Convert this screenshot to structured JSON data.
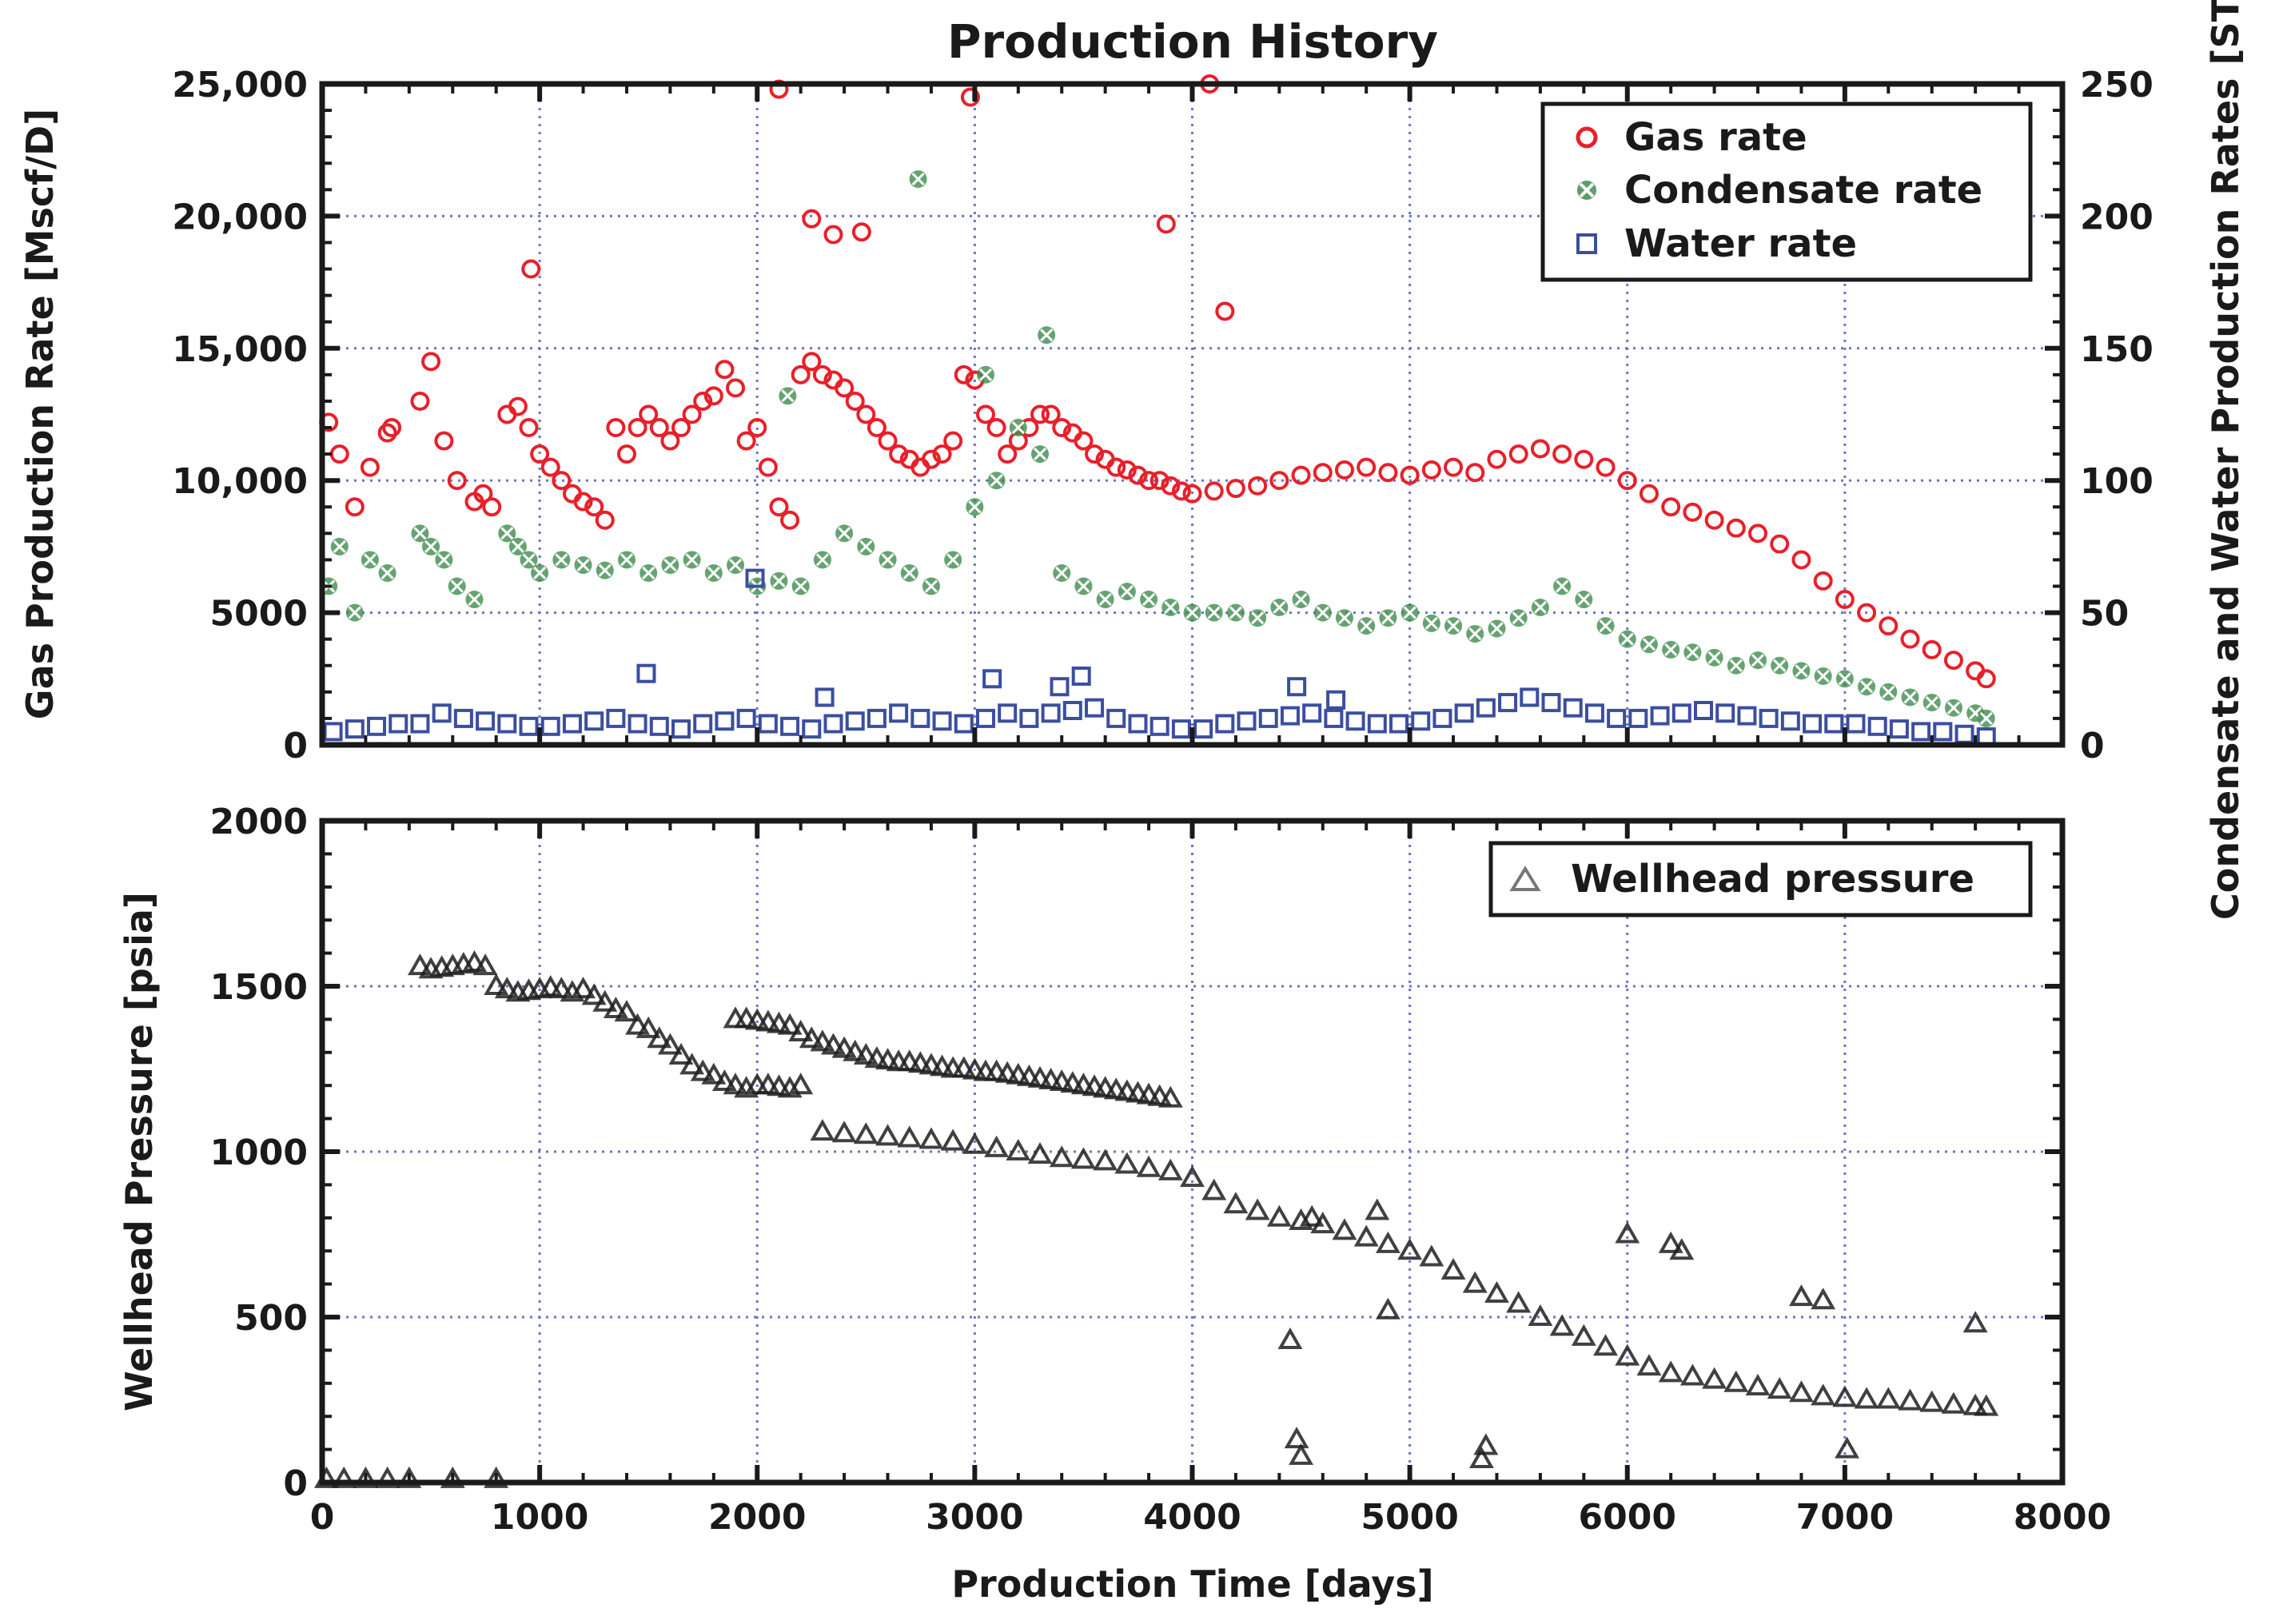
{
  "chart_data": [
    {
      "type": "scatter",
      "title": "Production History",
      "xlabel": "",
      "ylabel_left": "Gas Production Rate [Mscf/D]",
      "ylabel_right": "Condensate and Water Production Rates [STB/D]",
      "xlim": [
        0,
        8000
      ],
      "ylim_left": [
        0,
        25000
      ],
      "ylim_right": [
        0,
        250
      ],
      "x_ticks": [
        0,
        1000,
        2000,
        3000,
        4000,
        5000,
        6000,
        7000,
        8000
      ],
      "y_ticks_left": [
        0,
        5000,
        10000,
        15000,
        20000,
        25000
      ],
      "y_tick_labels_left": [
        "0",
        "5000",
        "10,000",
        "15,000",
        "20,000",
        "25,000"
      ],
      "y_ticks_right": [
        0,
        50,
        100,
        150,
        200,
        250
      ],
      "y_tick_labels_right": [
        "0",
        "50",
        "100",
        "150",
        "200",
        "250"
      ],
      "grid": true,
      "legend_position": "top-right",
      "series": [
        {
          "name": "Gas rate",
          "axis": "left",
          "marker": "circle",
          "color": "#e8202a",
          "x": [
            30,
            80,
            150,
            220,
            300,
            320,
            450,
            500,
            560,
            620,
            700,
            740,
            780,
            850,
            900,
            950,
            1000,
            1050,
            1100,
            1150,
            1200,
            1250,
            1300,
            1350,
            1400,
            1450,
            1500,
            1550,
            1600,
            1650,
            1700,
            1750,
            1800,
            1850,
            1900,
            1950,
            2000,
            2050,
            2100,
            2150,
            2200,
            2250,
            2300,
            2350,
            2400,
            2450,
            2500,
            2550,
            2600,
            2650,
            2700,
            2750,
            2800,
            2850,
            2900,
            2950,
            3000,
            3050,
            3100,
            3150,
            3200,
            3250,
            3300,
            3350,
            3400,
            3450,
            3500,
            3550,
            3600,
            3650,
            3700,
            3750,
            3800,
            3850,
            3900,
            3950,
            4000,
            4100,
            4200,
            4300,
            4400,
            4500,
            4600,
            4700,
            4800,
            4900,
            5000,
            5100,
            5200,
            5300,
            5400,
            5500,
            5600,
            5700,
            5800,
            5900,
            6000,
            6100,
            6200,
            6300,
            6400,
            6500,
            6600,
            6700,
            6800,
            6900,
            7000,
            7100,
            7200,
            7300,
            7400,
            7500,
            7600,
            7650,
            960,
            2100,
            2250,
            2350,
            2480,
            2980,
            4080,
            3880,
            4150
          ],
          "y": [
            12200,
            11000,
            9000,
            10500,
            11800,
            12000,
            13000,
            14500,
            11500,
            10000,
            9200,
            9500,
            9000,
            12500,
            12800,
            12000,
            11000,
            10500,
            10000,
            9500,
            9200,
            9000,
            8500,
            12000,
            11000,
            12000,
            12500,
            12000,
            11500,
            12000,
            12500,
            13000,
            13200,
            14200,
            13500,
            11500,
            12000,
            10500,
            9000,
            8500,
            14000,
            14500,
            14000,
            13800,
            13500,
            13000,
            12500,
            12000,
            11500,
            11000,
            10800,
            10500,
            10800,
            11000,
            11500,
            14000,
            13800,
            12500,
            12000,
            11000,
            11500,
            12000,
            12500,
            12500,
            12000,
            11800,
            11500,
            11000,
            10800,
            10500,
            10400,
            10200,
            10000,
            10000,
            9800,
            9600,
            9500,
            9600,
            9700,
            9800,
            10000,
            10200,
            10300,
            10400,
            10500,
            10300,
            10200,
            10400,
            10500,
            10300,
            10800,
            11000,
            11200,
            11000,
            10800,
            10500,
            10000,
            9500,
            9000,
            8800,
            8500,
            8200,
            8000,
            7600,
            7000,
            6200,
            5500,
            5000,
            4500,
            4000,
            3600,
            3200,
            2800,
            2500,
            18000,
            24800,
            19900,
            19300,
            19400,
            24500,
            25000,
            19700,
            16400
          ]
        },
        {
          "name": "Condensate rate",
          "axis": "right",
          "marker": "x",
          "color": "#3f8c4d",
          "x": [
            30,
            80,
            150,
            220,
            300,
            450,
            500,
            560,
            620,
            700,
            850,
            900,
            950,
            1000,
            1100,
            1200,
            1300,
            1400,
            1500,
            1600,
            1700,
            1800,
            1900,
            2000,
            2100,
            2200,
            2300,
            2400,
            2500,
            2600,
            2700,
            2800,
            2900,
            3000,
            3100,
            3200,
            3300,
            3400,
            3500,
            3600,
            3700,
            3800,
            3900,
            4000,
            4100,
            4200,
            4300,
            4400,
            4500,
            4600,
            4700,
            4800,
            4900,
            5000,
            5100,
            5200,
            5300,
            5400,
            5500,
            5600,
            5700,
            5800,
            5900,
            6000,
            6100,
            6200,
            6300,
            6400,
            6500,
            6600,
            6700,
            6800,
            6900,
            7000,
            7100,
            7200,
            7300,
            7400,
            7500,
            7600,
            7650,
            2740,
            3330,
            2140,
            3050
          ],
          "y": [
            60,
            75,
            50,
            70,
            65,
            80,
            75,
            70,
            60,
            55,
            80,
            75,
            70,
            65,
            70,
            68,
            66,
            70,
            65,
            68,
            70,
            65,
            68,
            60,
            62,
            60,
            70,
            80,
            75,
            70,
            65,
            60,
            70,
            90,
            100,
            120,
            110,
            65,
            60,
            55,
            58,
            55,
            52,
            50,
            50,
            50,
            48,
            52,
            55,
            50,
            48,
            45,
            48,
            50,
            46,
            45,
            42,
            44,
            48,
            52,
            60,
            55,
            45,
            40,
            38,
            36,
            35,
            33,
            30,
            32,
            30,
            28,
            26,
            25,
            22,
            20,
            18,
            16,
            14,
            12,
            10,
            214,
            155,
            132,
            140
          ]
        },
        {
          "name": "Water rate",
          "axis": "right",
          "marker": "square",
          "color": "#3b4ea0",
          "x": [
            50,
            150,
            250,
            350,
            450,
            550,
            650,
            750,
            850,
            950,
            1050,
            1150,
            1250,
            1350,
            1450,
            1550,
            1650,
            1750,
            1850,
            1950,
            2050,
            2150,
            2250,
            2350,
            2450,
            2550,
            2650,
            2750,
            2850,
            2950,
            3050,
            3150,
            3250,
            3350,
            3450,
            3550,
            3650,
            3750,
            3850,
            3950,
            4050,
            4150,
            4250,
            4350,
            4450,
            4550,
            4650,
            4750,
            4850,
            4950,
            5050,
            5150,
            5250,
            5350,
            5450,
            5550,
            5650,
            5750,
            5850,
            5950,
            6050,
            6150,
            6250,
            6350,
            6450,
            6550,
            6650,
            6750,
            6850,
            6950,
            7050,
            7150,
            7250,
            7350,
            7450,
            7550,
            7650,
            1990,
            1490,
            2310,
            3080,
            3390,
            3490,
            4480,
            4660
          ],
          "y": [
            5,
            6,
            7,
            8,
            8,
            12,
            10,
            9,
            8,
            7,
            7,
            8,
            9,
            10,
            8,
            7,
            6,
            8,
            9,
            10,
            8,
            7,
            6,
            8,
            9,
            10,
            12,
            10,
            9,
            8,
            10,
            12,
            10,
            12,
            13,
            14,
            10,
            8,
            7,
            6,
            6,
            8,
            9,
            10,
            11,
            12,
            10,
            9,
            8,
            8,
            9,
            10,
            12,
            14,
            16,
            18,
            16,
            14,
            12,
            10,
            10,
            11,
            12,
            13,
            12,
            11,
            10,
            9,
            8,
            8,
            8,
            7,
            6,
            5,
            5,
            4,
            3,
            63,
            27,
            18,
            25,
            22,
            26,
            22,
            17
          ]
        }
      ],
      "legend": [
        "Gas rate",
        "Condensate rate",
        "Water rate"
      ]
    },
    {
      "type": "scatter",
      "title": "",
      "xlabel": "Production Time [days]",
      "ylabel": "Wellhead Pressure [psia]",
      "xlim": [
        0,
        8000
      ],
      "ylim": [
        0,
        2000
      ],
      "x_ticks": [
        0,
        1000,
        2000,
        3000,
        4000,
        5000,
        6000,
        7000,
        8000
      ],
      "x_tick_labels": [
        "0",
        "1000",
        "2000",
        "3000",
        "4000",
        "5000",
        "6000",
        "7000",
        "8000"
      ],
      "y_ticks": [
        0,
        500,
        1000,
        1500,
        2000
      ],
      "y_tick_labels": [
        "0",
        "500",
        "1000",
        "1500",
        "2000"
      ],
      "grid": true,
      "legend_position": "top-right",
      "series": [
        {
          "name": "Wellhead pressure",
          "marker": "triangle",
          "color": "#1e1e1e",
          "x": [
            450,
            500,
            550,
            600,
            650,
            700,
            750,
            800,
            850,
            900,
            950,
            1000,
            1050,
            1100,
            1150,
            1200,
            1250,
            1300,
            1350,
            1400,
            1450,
            1500,
            1550,
            1600,
            1650,
            1700,
            1750,
            1800,
            1850,
            1900,
            1950,
            2000,
            2050,
            2100,
            2150,
            2200,
            1900,
            1950,
            2000,
            2050,
            2100,
            2150,
            2200,
            2250,
            2300,
            2350,
            2400,
            2450,
            2500,
            2550,
            2600,
            2650,
            2700,
            2750,
            2800,
            2850,
            2900,
            2950,
            3000,
            3050,
            3100,
            3150,
            3200,
            3250,
            3300,
            3350,
            3400,
            3450,
            3500,
            3550,
            3600,
            3650,
            3700,
            3750,
            3800,
            3850,
            3900,
            2300,
            2400,
            2500,
            2600,
            2700,
            2800,
            2900,
            3000,
            3100,
            3200,
            3300,
            3400,
            3500,
            3600,
            3700,
            3800,
            3900,
            4000,
            4100,
            4200,
            4300,
            4400,
            4500,
            4550,
            4600,
            4700,
            4800,
            4900,
            5000,
            5100,
            5200,
            5300,
            5400,
            5500,
            5600,
            5700,
            5800,
            5900,
            6000,
            6100,
            6200,
            6300,
            6400,
            6500,
            6600,
            6700,
            6800,
            6900,
            7000,
            7100,
            7200,
            7300,
            7400,
            7500,
            7600,
            7650,
            6000,
            6200,
            6250,
            6800,
            6900,
            7600,
            20,
            100,
            200,
            300,
            400,
            600,
            800,
            4480,
            4450,
            4500,
            5350,
            5330,
            7010,
            4850,
            4900
          ],
          "y": [
            1560,
            1550,
            1555,
            1560,
            1565,
            1570,
            1560,
            1500,
            1490,
            1480,
            1485,
            1490,
            1495,
            1490,
            1480,
            1490,
            1470,
            1450,
            1430,
            1420,
            1380,
            1370,
            1340,
            1320,
            1290,
            1260,
            1240,
            1230,
            1210,
            1200,
            1190,
            1200,
            1200,
            1195,
            1190,
            1200,
            1400,
            1400,
            1395,
            1390,
            1385,
            1380,
            1360,
            1340,
            1330,
            1320,
            1310,
            1300,
            1290,
            1280,
            1275,
            1270,
            1270,
            1265,
            1260,
            1255,
            1250,
            1250,
            1245,
            1240,
            1240,
            1235,
            1230,
            1225,
            1220,
            1215,
            1210,
            1205,
            1200,
            1195,
            1190,
            1185,
            1180,
            1175,
            1170,
            1165,
            1160,
            1060,
            1055,
            1050,
            1045,
            1040,
            1035,
            1030,
            1020,
            1010,
            1000,
            990,
            980,
            975,
            970,
            960,
            950,
            940,
            920,
            880,
            840,
            820,
            800,
            790,
            800,
            780,
            760,
            740,
            720,
            700,
            680,
            640,
            600,
            570,
            540,
            500,
            470,
            440,
            410,
            380,
            350,
            330,
            320,
            310,
            300,
            290,
            280,
            270,
            260,
            255,
            250,
            250,
            245,
            240,
            235,
            230,
            228,
            750,
            720,
            700,
            560,
            550,
            480,
            10,
            10,
            10,
            10,
            10,
            10,
            10,
            130,
            430,
            80,
            110,
            70,
            100,
            820,
            520
          ]
        }
      ],
      "legend": [
        "Wellhead pressure"
      ]
    }
  ]
}
